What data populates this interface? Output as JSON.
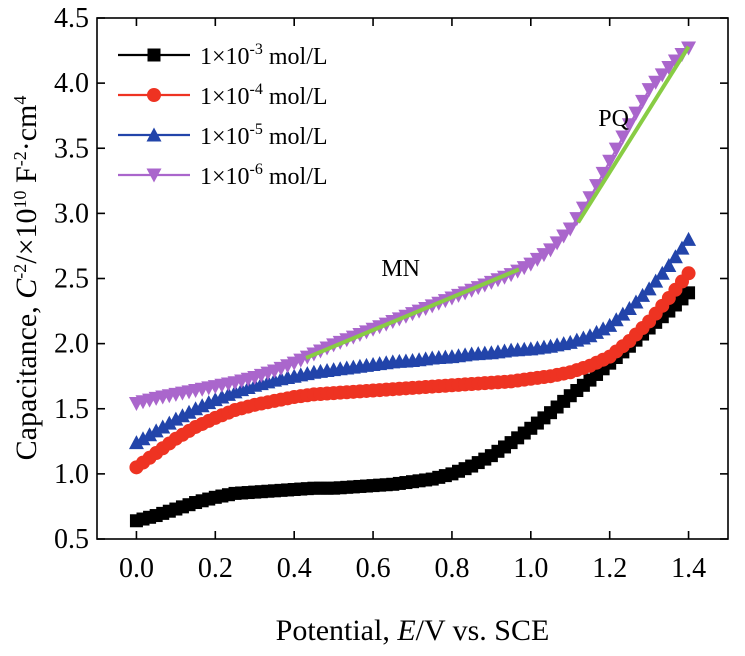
{
  "chart_data": {
    "type": "scatter",
    "xlabel": {
      "pre": "Potential, ",
      "italic": "E",
      "post": "/V vs. SCE"
    },
    "ylabel": {
      "pre": "Capacitance, ",
      "italic": "C",
      "sup1": "-2",
      "mid": "/×10",
      "sup2": "10",
      "unit": " F",
      "sup3": "-2",
      "tail": "·cm",
      "sup4": "4"
    },
    "xlim": [
      -0.1,
      1.5
    ],
    "ylim": [
      0.5,
      4.5
    ],
    "x_ticks": [
      "0.0",
      "0.2",
      "0.4",
      "0.6",
      "0.8",
      "1.0",
      "1.2",
      "1.4"
    ],
    "x_tick_values": [
      0.0,
      0.2,
      0.4,
      0.6,
      0.8,
      1.0,
      1.2,
      1.4
    ],
    "y_ticks": [
      "0.5",
      "1.0",
      "1.5",
      "2.0",
      "2.5",
      "3.0",
      "3.5",
      "4.0",
      "4.5"
    ],
    "y_tick_values": [
      0.5,
      1.0,
      1.5,
      2.0,
      2.5,
      3.0,
      3.5,
      4.0,
      4.5
    ],
    "grid": false,
    "legend_position": "top-left",
    "series": [
      {
        "name": "1×10-3 mol/L",
        "label": {
          "base": "1×10",
          "exp": "-3",
          "unit": " mol/L"
        },
        "color": "#000000",
        "marker": "square",
        "points": [
          [
            0.0,
            0.64
          ],
          [
            0.05,
            0.68
          ],
          [
            0.1,
            0.73
          ],
          [
            0.15,
            0.78
          ],
          [
            0.2,
            0.82
          ],
          [
            0.25,
            0.85
          ],
          [
            0.3,
            0.86
          ],
          [
            0.35,
            0.87
          ],
          [
            0.4,
            0.88
          ],
          [
            0.45,
            0.89
          ],
          [
            0.5,
            0.89
          ],
          [
            0.55,
            0.9
          ],
          [
            0.6,
            0.91
          ],
          [
            0.65,
            0.92
          ],
          [
            0.7,
            0.94
          ],
          [
            0.75,
            0.96
          ],
          [
            0.8,
            1.0
          ],
          [
            0.85,
            1.06
          ],
          [
            0.9,
            1.14
          ],
          [
            0.95,
            1.24
          ],
          [
            1.0,
            1.35
          ],
          [
            1.05,
            1.47
          ],
          [
            1.1,
            1.6
          ],
          [
            1.15,
            1.72
          ],
          [
            1.2,
            1.85
          ],
          [
            1.25,
            1.98
          ],
          [
            1.3,
            2.12
          ],
          [
            1.35,
            2.25
          ],
          [
            1.4,
            2.39
          ]
        ]
      },
      {
        "name": "1×10-4 mol/L",
        "label": {
          "base": "1×10",
          "exp": "-4",
          "unit": " mol/L"
        },
        "color": "#ee3322",
        "marker": "circle",
        "points": [
          [
            0.0,
            1.05
          ],
          [
            0.05,
            1.16
          ],
          [
            0.1,
            1.27
          ],
          [
            0.15,
            1.36
          ],
          [
            0.2,
            1.43
          ],
          [
            0.25,
            1.49
          ],
          [
            0.3,
            1.53
          ],
          [
            0.35,
            1.56
          ],
          [
            0.4,
            1.59
          ],
          [
            0.45,
            1.61
          ],
          [
            0.5,
            1.62
          ],
          [
            0.55,
            1.63
          ],
          [
            0.6,
            1.64
          ],
          [
            0.65,
            1.65
          ],
          [
            0.7,
            1.66
          ],
          [
            0.75,
            1.67
          ],
          [
            0.8,
            1.68
          ],
          [
            0.85,
            1.69
          ],
          [
            0.9,
            1.7
          ],
          [
            0.95,
            1.71
          ],
          [
            1.0,
            1.73
          ],
          [
            1.05,
            1.75
          ],
          [
            1.1,
            1.78
          ],
          [
            1.15,
            1.83
          ],
          [
            1.2,
            1.9
          ],
          [
            1.25,
            2.02
          ],
          [
            1.3,
            2.17
          ],
          [
            1.35,
            2.35
          ],
          [
            1.4,
            2.54
          ]
        ]
      },
      {
        "name": "1×10-5 mol/L",
        "label": {
          "base": "1×10",
          "exp": "-5",
          "unit": " mol/L"
        },
        "color": "#2244aa",
        "marker": "triangle-up",
        "points": [
          [
            0.0,
            1.24
          ],
          [
            0.05,
            1.33
          ],
          [
            0.1,
            1.42
          ],
          [
            0.15,
            1.5
          ],
          [
            0.2,
            1.57
          ],
          [
            0.25,
            1.63
          ],
          [
            0.3,
            1.68
          ],
          [
            0.35,
            1.72
          ],
          [
            0.4,
            1.75
          ],
          [
            0.45,
            1.78
          ],
          [
            0.5,
            1.8
          ],
          [
            0.55,
            1.82
          ],
          [
            0.6,
            1.84
          ],
          [
            0.65,
            1.86
          ],
          [
            0.7,
            1.87
          ],
          [
            0.75,
            1.89
          ],
          [
            0.8,
            1.9
          ],
          [
            0.85,
            1.92
          ],
          [
            0.9,
            1.93
          ],
          [
            0.95,
            1.95
          ],
          [
            1.0,
            1.96
          ],
          [
            1.05,
            1.98
          ],
          [
            1.1,
            2.01
          ],
          [
            1.15,
            2.06
          ],
          [
            1.2,
            2.14
          ],
          [
            1.25,
            2.27
          ],
          [
            1.3,
            2.42
          ],
          [
            1.35,
            2.6
          ],
          [
            1.4,
            2.8
          ]
        ]
      },
      {
        "name": "1×10-6 mol/L",
        "label": {
          "base": "1×10",
          "exp": "-6",
          "unit": " mol/L"
        },
        "color": "#aa66cc",
        "marker": "triangle-down",
        "points": [
          [
            0.0,
            1.54
          ],
          [
            0.05,
            1.58
          ],
          [
            0.1,
            1.61
          ],
          [
            0.15,
            1.64
          ],
          [
            0.2,
            1.67
          ],
          [
            0.25,
            1.7
          ],
          [
            0.3,
            1.74
          ],
          [
            0.35,
            1.79
          ],
          [
            0.4,
            1.85
          ],
          [
            0.45,
            1.92
          ],
          [
            0.5,
            1.99
          ],
          [
            0.55,
            2.05
          ],
          [
            0.6,
            2.11
          ],
          [
            0.65,
            2.17
          ],
          [
            0.7,
            2.23
          ],
          [
            0.75,
            2.29
          ],
          [
            0.8,
            2.35
          ],
          [
            0.85,
            2.41
          ],
          [
            0.9,
            2.47
          ],
          [
            0.95,
            2.53
          ],
          [
            1.0,
            2.61
          ],
          [
            1.05,
            2.72
          ],
          [
            1.1,
            2.88
          ],
          [
            1.15,
            3.12
          ],
          [
            1.2,
            3.4
          ],
          [
            1.25,
            3.68
          ],
          [
            1.3,
            3.95
          ],
          [
            1.35,
            4.12
          ],
          [
            1.4,
            4.27
          ]
        ]
      }
    ],
    "fit_lines": [
      {
        "label": "MN",
        "color": "#88cc44",
        "x": [
          0.43,
          0.97
        ],
        "y": [
          1.89,
          2.57
        ]
      },
      {
        "label": "PQ",
        "color": "#88cc44",
        "x": [
          1.12,
          1.4
        ],
        "y": [
          2.93,
          4.28
        ]
      }
    ],
    "annotations": [
      {
        "text": "MN",
        "x": 0.67,
        "y": 2.52
      },
      {
        "text": "PQ",
        "x": 1.21,
        "y": 3.67
      }
    ]
  }
}
